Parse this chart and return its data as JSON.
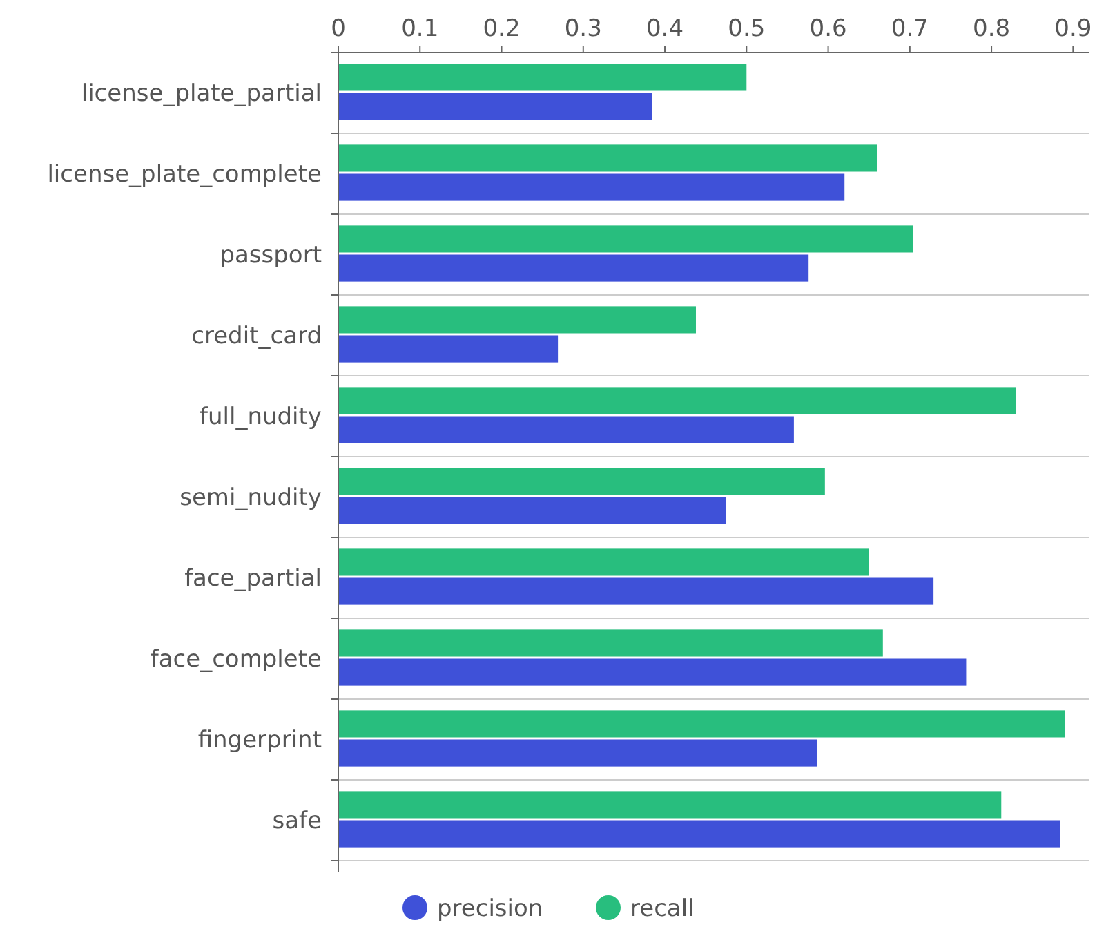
{
  "chart_data": {
    "type": "bar",
    "orientation": "horizontal",
    "categories": [
      "license_plate_partial",
      "license_plate_complete",
      "passport",
      "credit_card",
      "full_nudity",
      "semi_nudity",
      "face_partial",
      "face_complete",
      "fingerprint",
      "safe"
    ],
    "series": [
      {
        "name": "precision",
        "color": "#3f51d8",
        "values": [
          0.384,
          0.62,
          0.576,
          0.269,
          0.558,
          0.475,
          0.729,
          0.769,
          0.586,
          0.884
        ]
      },
      {
        "name": "recall",
        "color": "#28be7e",
        "values": [
          0.5,
          0.66,
          0.704,
          0.438,
          0.83,
          0.596,
          0.65,
          0.667,
          0.89,
          0.812
        ]
      }
    ],
    "xlim": [
      0,
      0.92
    ],
    "xticks": [
      0,
      0.1,
      0.2,
      0.3,
      0.4,
      0.5,
      0.6,
      0.7,
      0.8,
      0.9
    ],
    "grid": "y",
    "legend": "bottom"
  }
}
